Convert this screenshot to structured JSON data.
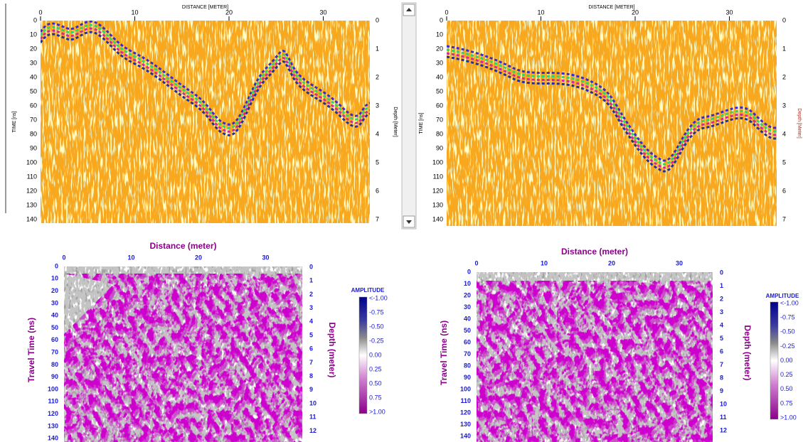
{
  "panels": [
    {
      "x_title": "DISTANCE [METER]",
      "y_title": "TIME [ns]",
      "y2_title": "Depth [Meter]",
      "x_ticks": [
        0,
        10,
        20,
        30
      ],
      "y_ticks": [
        0,
        10,
        20,
        30,
        40,
        50,
        60,
        70,
        80,
        90,
        100,
        110,
        120,
        130,
        140
      ],
      "y2_ticks": [
        0,
        1,
        2,
        3,
        4,
        5,
        6,
        7
      ]
    },
    {
      "x_title": "DISTANCE [METER]",
      "y_title": "TIME [ns]",
      "y2_title": "Depth [Meter]",
      "x_ticks": [
        0,
        10,
        20,
        30
      ],
      "y_ticks": [
        0,
        10,
        20,
        30,
        40,
        50,
        60,
        70,
        80,
        90,
        100,
        110,
        120,
        130,
        140
      ],
      "y2_ticks": [
        0,
        1,
        2,
        3,
        4,
        5,
        6,
        7
      ]
    },
    {
      "x_title": "Distance (meter)",
      "y_title": "Travel Time (ns)",
      "y2_title": "Depth (meter)",
      "x_ticks": [
        0,
        10,
        20,
        30
      ],
      "y_ticks": [
        0,
        10,
        20,
        30,
        40,
        50,
        60,
        70,
        80,
        90,
        100,
        110,
        120,
        130,
        140
      ],
      "y2_ticks": [
        0,
        1,
        2,
        3,
        4,
        5,
        6,
        7,
        8,
        9,
        10,
        11,
        12
      ],
      "colorbar": {
        "title": "AMPLITUDE",
        "labels": [
          "<-1.00",
          "-0.75",
          "-0.50",
          "-0.25",
          "0.00",
          "0.25",
          "0.50",
          "0.75",
          ">1.00"
        ]
      }
    },
    {
      "x_title": "Distance (meter)",
      "y_title": "Travel Time (ns)",
      "y2_title": "Depth (meter)",
      "x_ticks": [
        0,
        10,
        20,
        30
      ],
      "y_ticks": [
        0,
        10,
        20,
        30,
        40,
        50,
        60,
        70,
        80,
        90,
        100,
        110,
        120,
        130,
        140
      ],
      "y2_ticks": [
        0,
        1,
        2,
        3,
        4,
        5,
        6,
        7,
        8,
        9,
        10,
        11,
        12
      ],
      "colorbar": {
        "title": "AMPLITUDE",
        "labels": [
          "<-1.00",
          "-0.75",
          "-0.50",
          "-0.25",
          "0.00",
          "0.25",
          "0.50",
          "0.75",
          ">1.00"
        ]
      }
    }
  ]
}
